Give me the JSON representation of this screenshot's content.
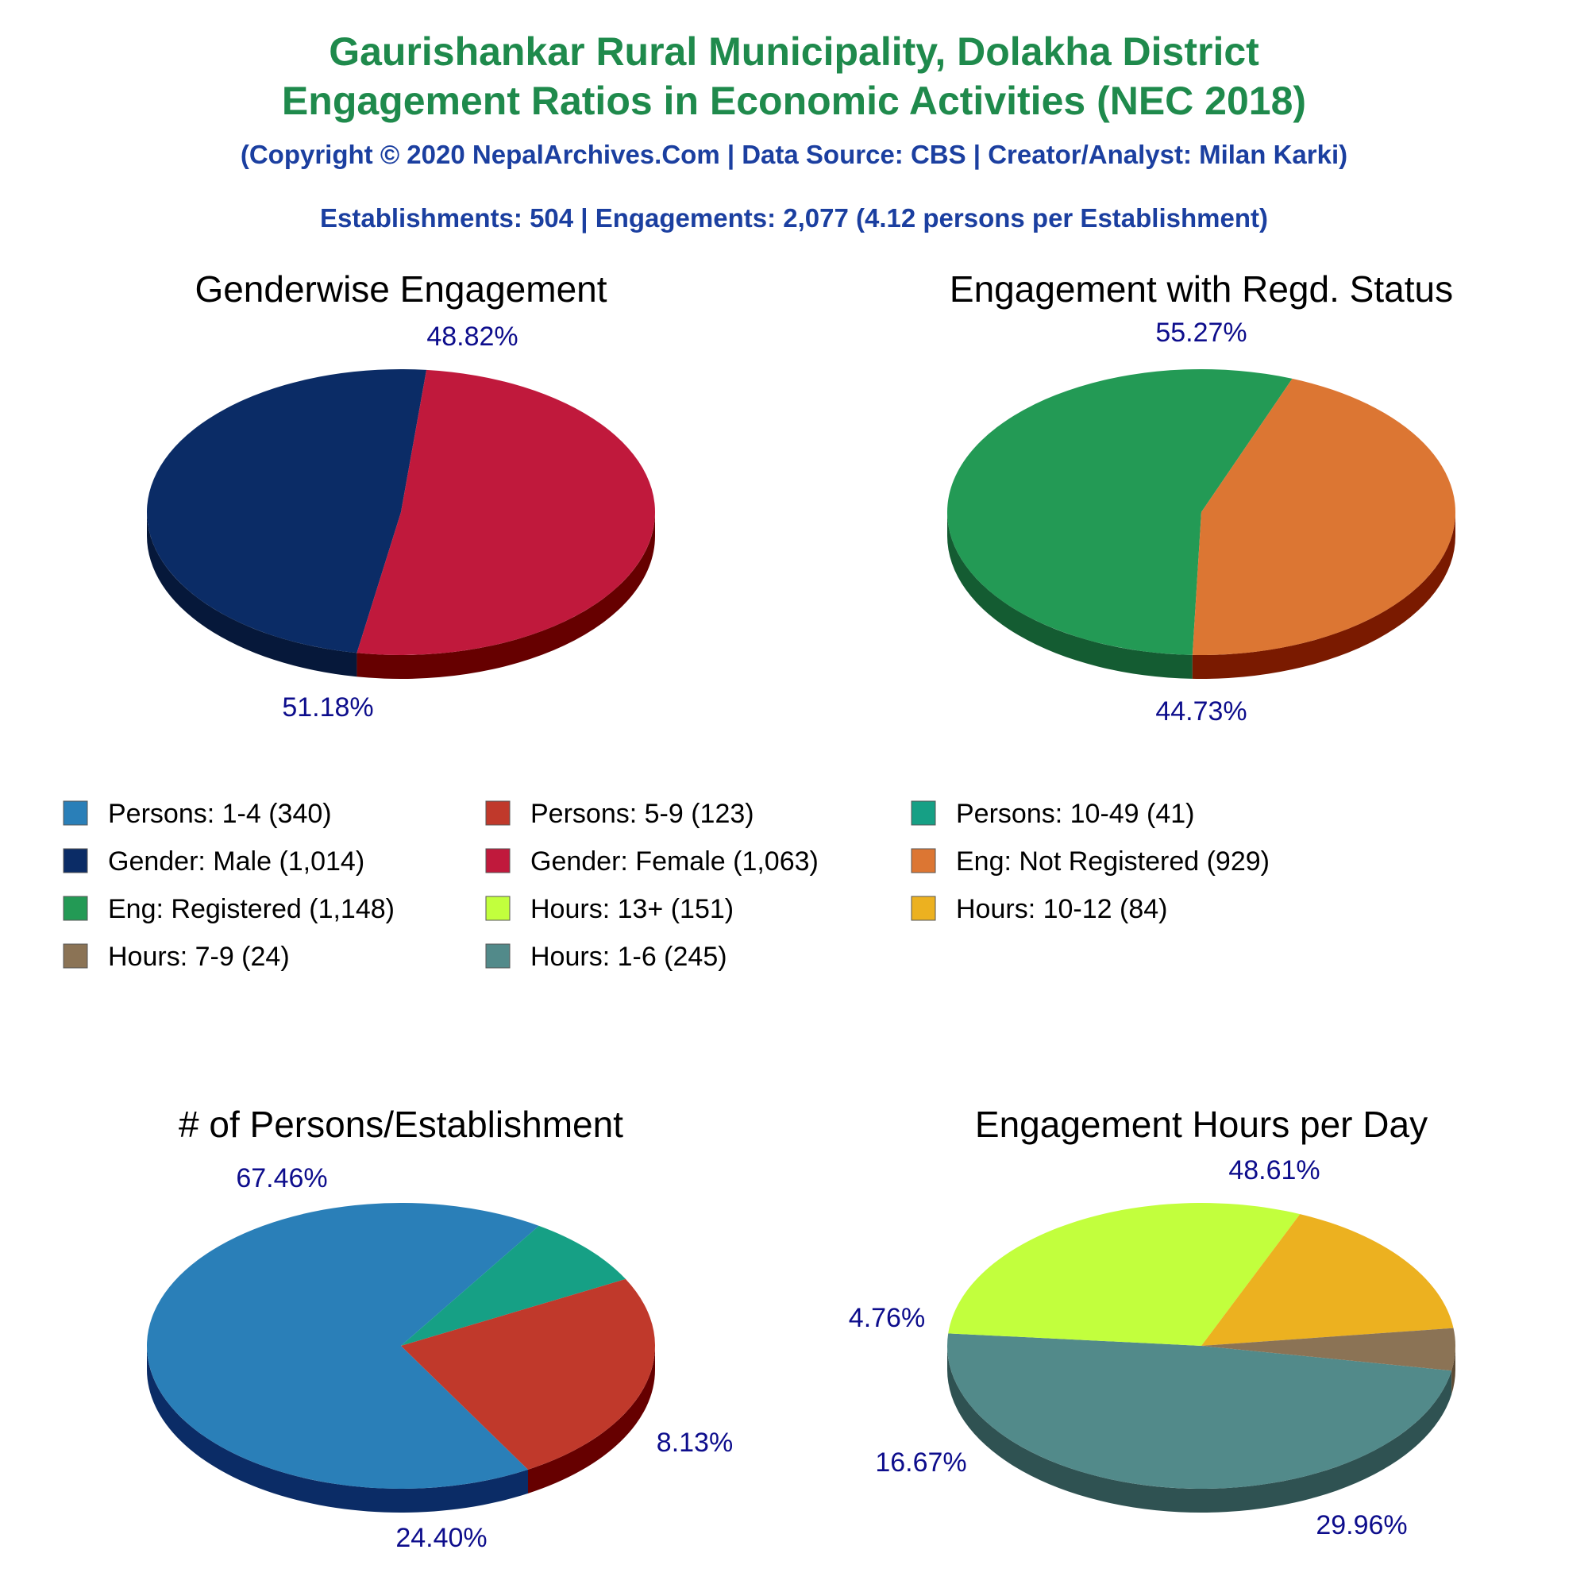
{
  "header": {
    "title_line1": "Gaurishankar Rural Municipality, Dolakha District",
    "title_line2": "Engagement Ratios in Economic Activities (NEC 2018)",
    "copyright": "(Copyright © 2020 NepalArchives.Com | Data Source: CBS | Creator/Analyst: Milan Karki)",
    "summary": "Establishments: 504 | Engagements: 2,077 (4.12 persons per Establishment)"
  },
  "legend": [
    {
      "label": "Persons: 1-4 (340)",
      "color": "#2a7fb8"
    },
    {
      "label": "Persons: 5-9 (123)",
      "color": "#c0392b"
    },
    {
      "label": "Persons: 10-49 (41)",
      "color": "#16a085"
    },
    {
      "label": "Gender: Male (1,014)",
      "color": "#0b2c66"
    },
    {
      "label": "Gender: Female (1,063)",
      "color": "#c0193c"
    },
    {
      "label": "Eng: Not Registered (929)",
      "color": "#dc7633"
    },
    {
      "label": "Eng: Registered (1,148)",
      "color": "#239a55"
    },
    {
      "label": "Hours: 13+ (151)",
      "color": "#c2ff3d"
    },
    {
      "label": "Hours: 10-12 (84)",
      "color": "#ecb120"
    },
    {
      "label": "Hours: 7-9 (24)",
      "color": "#8b7355"
    },
    {
      "label": "Hours: 1-6 (245)",
      "color": "#528a8a"
    }
  ],
  "chart_data": [
    {
      "type": "pie",
      "title": "Genderwise Engagement",
      "slices": [
        {
          "name": "Gender: Male",
          "value": 48.82,
          "label": "48.82%",
          "color": "#0b2c66",
          "side": "#06183a"
        },
        {
          "name": "Gender: Female",
          "value": 51.18,
          "label": "51.18%",
          "color": "#c0193c",
          "side": "#660000"
        }
      ]
    },
    {
      "type": "pie",
      "title": "Engagement with Regd. Status",
      "slices": [
        {
          "name": "Eng: Registered",
          "value": 55.27,
          "label": "55.27%",
          "color": "#239a55",
          "side": "#145c32"
        },
        {
          "name": "Eng: Not Registered",
          "value": 44.73,
          "label": "44.73%",
          "color": "#dc7633",
          "side": "#7a1a00"
        }
      ]
    },
    {
      "type": "pie",
      "title": "# of Persons/Establishment",
      "slices": [
        {
          "name": "Persons: 1-4",
          "value": 67.46,
          "label": "67.46%",
          "color": "#2a7fb8",
          "side": "#0b2c66"
        },
        {
          "name": "Persons: 10-49",
          "value": 8.13,
          "label": "8.13%",
          "color": "#16a085",
          "side": "#00401e"
        },
        {
          "name": "Persons: 5-9",
          "value": 24.4,
          "label": "24.40%",
          "color": "#c0392b",
          "side": "#660000"
        }
      ]
    },
    {
      "type": "pie",
      "title": "Engagement Hours per Day",
      "slices": [
        {
          "name": "Hours: 1-6",
          "value": 48.61,
          "label": "48.61%",
          "color": "#528a8a",
          "side": "#2f5252"
        },
        {
          "name": "Hours: 13+",
          "value": 29.96,
          "label": "29.96%",
          "color": "#c2ff3d",
          "side": "#66a600"
        },
        {
          "name": "Hours: 10-12",
          "value": 16.67,
          "label": "16.67%",
          "color": "#ecb120",
          "side": "#9a5c00"
        },
        {
          "name": "Hours: 7-9",
          "value": 4.76,
          "label": "4.76%",
          "color": "#8b7355",
          "side": "#5c4a33"
        }
      ]
    }
  ]
}
